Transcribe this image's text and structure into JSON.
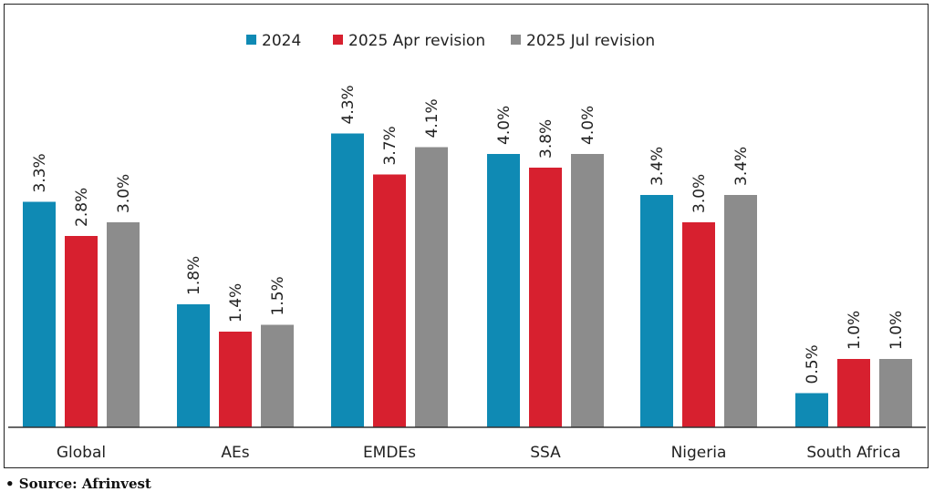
{
  "chart_data": {
    "type": "bar",
    "title": "",
    "xlabel": "",
    "ylabel": "",
    "ylim": [
      0,
      4.5
    ],
    "categories": [
      "Global",
      "AEs",
      "EMDEs",
      "SSA",
      "Nigeria",
      "South Africa"
    ],
    "series": [
      {
        "name": "2024",
        "color": "#0f8ab4",
        "values": [
          3.3,
          1.8,
          4.3,
          4.0,
          3.4,
          0.5
        ],
        "labels": [
          "3.3%",
          "1.8%",
          "4.3%",
          "4.0%",
          "3.4%",
          "0.5%"
        ]
      },
      {
        "name": "2025 Apr revision",
        "color": "#d7202f",
        "values": [
          2.8,
          1.4,
          3.7,
          3.8,
          3.0,
          1.0
        ],
        "labels": [
          "2.8%",
          "1.4%",
          "3.7%",
          "3.8%",
          "3.0%",
          "1.0%"
        ]
      },
      {
        "name": "2025 Jul revision",
        "color": "#8c8c8c",
        "values": [
          3.0,
          1.5,
          4.1,
          4.0,
          3.4,
          1.0
        ],
        "labels": [
          "3.0%",
          "1.5%",
          "4.1%",
          "4.0%",
          "3.4%",
          "1.0%"
        ]
      }
    ],
    "legend_position": "top-center",
    "grid": false
  },
  "source": "• Source: Afrinvest"
}
